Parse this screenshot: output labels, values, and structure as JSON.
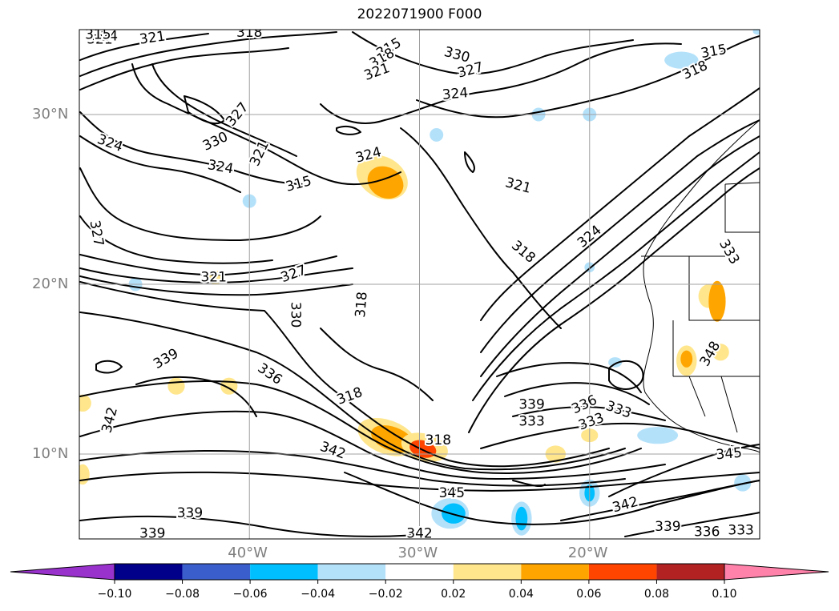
{
  "title": "2022071900 F000",
  "map": {
    "lat_labels": [
      {
        "text": "30°N",
        "lat": 30
      },
      {
        "text": "20°N",
        "lat": 20
      },
      {
        "text": "10°N",
        "lat": 10
      }
    ],
    "lon_labels": [
      {
        "text": "40°W",
        "lon": -40
      },
      {
        "text": "30°W",
        "lon": -30
      },
      {
        "text": "20°W",
        "lon": -20
      }
    ],
    "lon_range": [
      -50,
      -10
    ],
    "lat_range": [
      5,
      35
    ],
    "grid": true,
    "contour_labels": [
      {
        "text": "318",
        "lon": -40.0,
        "lat": 34.8,
        "angle": 0
      },
      {
        "text": "321",
        "lon": -45.7,
        "lat": 34.5,
        "angle": -8
      },
      {
        "text": "321",
        "lon": -48.8,
        "lat": 34.4,
        "angle": 0
      },
      {
        "text": "324",
        "lon": -48.5,
        "lat": 34.6,
        "angle": 0
      },
      {
        "text": "315",
        "lon": -48.9,
        "lat": 34.7,
        "angle": 0
      },
      {
        "text": "315",
        "lon": -31.8,
        "lat": 33.9,
        "angle": -30
      },
      {
        "text": "318",
        "lon": -32.2,
        "lat": 33.3,
        "angle": -30
      },
      {
        "text": "321",
        "lon": -32.5,
        "lat": 32.5,
        "angle": -20
      },
      {
        "text": "330",
        "lon": -27.8,
        "lat": 33.5,
        "angle": 15
      },
      {
        "text": "327",
        "lon": -27.0,
        "lat": 32.6,
        "angle": -15
      },
      {
        "text": "324",
        "lon": -27.9,
        "lat": 31.2,
        "angle": -5
      },
      {
        "text": "315",
        "lon": -12.7,
        "lat": 33.7,
        "angle": -10
      },
      {
        "text": "318",
        "lon": -13.8,
        "lat": 32.6,
        "angle": -25
      },
      {
        "text": "327",
        "lon": -40.7,
        "lat": 30.0,
        "angle": -50
      },
      {
        "text": "330",
        "lon": -42.0,
        "lat": 28.4,
        "angle": -25
      },
      {
        "text": "321",
        "lon": -39.4,
        "lat": 27.7,
        "angle": -65
      },
      {
        "text": "324",
        "lon": -48.2,
        "lat": 28.3,
        "angle": 20
      },
      {
        "text": "324",
        "lon": -41.7,
        "lat": 26.9,
        "angle": 10
      },
      {
        "text": "324",
        "lon": -33.0,
        "lat": 27.6,
        "angle": -15
      },
      {
        "text": "315",
        "lon": -37.1,
        "lat": 25.9,
        "angle": -15
      },
      {
        "text": "321",
        "lon": -24.2,
        "lat": 25.8,
        "angle": 15
      },
      {
        "text": "327",
        "lon": -49.0,
        "lat": 23.0,
        "angle": 80
      },
      {
        "text": "324",
        "lon": -20.0,
        "lat": 22.8,
        "angle": -40
      },
      {
        "text": "318",
        "lon": -23.9,
        "lat": 21.9,
        "angle": 40
      },
      {
        "text": "333",
        "lon": -11.8,
        "lat": 21.9,
        "angle": 60
      },
      {
        "text": "321",
        "lon": -42.1,
        "lat": 20.4,
        "angle": 0
      },
      {
        "text": "327",
        "lon": -37.4,
        "lat": 20.6,
        "angle": -20
      },
      {
        "text": "330",
        "lon": -37.3,
        "lat": 18.2,
        "angle": 90
      },
      {
        "text": "318",
        "lon": -33.4,
        "lat": 18.8,
        "angle": -85
      },
      {
        "text": "339",
        "lon": -44.9,
        "lat": 15.6,
        "angle": -30
      },
      {
        "text": "336",
        "lon": -38.8,
        "lat": 14.7,
        "angle": 35
      },
      {
        "text": "348",
        "lon": -12.9,
        "lat": 15.9,
        "angle": -60
      },
      {
        "text": "318",
        "lon": -34.1,
        "lat": 13.4,
        "angle": -20
      },
      {
        "text": "339",
        "lon": -23.4,
        "lat": 12.9,
        "angle": 0
      },
      {
        "text": "336",
        "lon": -20.3,
        "lat": 12.9,
        "angle": -25
      },
      {
        "text": "333",
        "lon": -18.3,
        "lat": 12.6,
        "angle": 20
      },
      {
        "text": "333",
        "lon": -23.4,
        "lat": 11.9,
        "angle": 0
      },
      {
        "text": "333",
        "lon": -19.9,
        "lat": 11.9,
        "angle": -20
      },
      {
        "text": "342",
        "lon": -48.2,
        "lat": 12.0,
        "angle": -75
      },
      {
        "text": "318",
        "lon": -28.9,
        "lat": 10.8,
        "angle": 0
      },
      {
        "text": "342",
        "lon": -35.1,
        "lat": 10.2,
        "angle": 20
      },
      {
        "text": "345",
        "lon": -11.8,
        "lat": 10.0,
        "angle": -5
      },
      {
        "text": "345",
        "lon": -28.1,
        "lat": 7.7,
        "angle": 0
      },
      {
        "text": "342",
        "lon": -17.9,
        "lat": 7.0,
        "angle": -15
      },
      {
        "text": "339",
        "lon": -43.5,
        "lat": 6.5,
        "angle": 0
      },
      {
        "text": "339",
        "lon": -15.4,
        "lat": 5.7,
        "angle": 0
      },
      {
        "text": "336",
        "lon": -13.1,
        "lat": 5.4,
        "angle": 0
      },
      {
        "text": "333",
        "lon": -11.1,
        "lat": 5.5,
        "angle": 0
      },
      {
        "text": "339",
        "lon": -45.7,
        "lat": 5.3,
        "angle": 0
      },
      {
        "text": "342",
        "lon": -30.0,
        "lat": 5.3,
        "angle": 0
      }
    ],
    "shaded_blobs": [
      {
        "lon": -32.2,
        "lat": 26.3,
        "rx": 1.6,
        "ry": 1.2,
        "color": "#ffe68c",
        "angle": 30
      },
      {
        "lon": -32.0,
        "lat": 26.0,
        "rx": 1.1,
        "ry": 0.9,
        "color": "#ffa500",
        "angle": 30
      },
      {
        "lon": -31.9,
        "lat": 11.0,
        "rx": 1.8,
        "ry": 1.0,
        "color": "#ffe68c",
        "angle": 20
      },
      {
        "lon": -31.6,
        "lat": 10.9,
        "rx": 1.3,
        "ry": 0.7,
        "color": "#ffa500",
        "angle": 20
      },
      {
        "lon": -29.7,
        "lat": 10.4,
        "rx": 1.4,
        "ry": 0.8,
        "color": "#ffe68c",
        "angle": 15
      },
      {
        "lon": -29.8,
        "lat": 10.3,
        "rx": 0.8,
        "ry": 0.5,
        "color": "#ff4500",
        "angle": 15
      },
      {
        "lon": -28.2,
        "lat": 6.5,
        "rx": 1.1,
        "ry": 0.9,
        "color": "#b4e1fa",
        "angle": 0
      },
      {
        "lon": -28.0,
        "lat": 6.5,
        "rx": 0.7,
        "ry": 0.6,
        "color": "#00bfff",
        "angle": 0
      },
      {
        "lon": -24.0,
        "lat": 6.2,
        "rx": 0.6,
        "ry": 1.0,
        "color": "#b4e1fa",
        "angle": 0
      },
      {
        "lon": -24.0,
        "lat": 6.2,
        "rx": 0.35,
        "ry": 0.7,
        "color": "#00bfff",
        "angle": 0
      },
      {
        "lon": -20.0,
        "lat": 7.7,
        "rx": 0.6,
        "ry": 0.8,
        "color": "#b4e1fa",
        "angle": 0
      },
      {
        "lon": -20.0,
        "lat": 7.7,
        "rx": 0.3,
        "ry": 0.5,
        "color": "#00bfff",
        "angle": 0
      },
      {
        "lon": -14.6,
        "lat": 33.2,
        "rx": 1.0,
        "ry": 0.5,
        "color": "#b4e1fa",
        "angle": 0
      },
      {
        "lon": -13.0,
        "lat": 19.3,
        "rx": 0.6,
        "ry": 0.7,
        "color": "#ffe68c",
        "angle": 0
      },
      {
        "lon": -12.5,
        "lat": 19.0,
        "rx": 0.5,
        "ry": 1.2,
        "color": "#ffa500",
        "angle": 0
      },
      {
        "lon": -12.3,
        "lat": 16.0,
        "rx": 0.5,
        "ry": 0.5,
        "color": "#ffe68c",
        "angle": 0
      },
      {
        "lon": -14.3,
        "lat": 15.5,
        "rx": 0.6,
        "ry": 0.9,
        "color": "#ffe68c",
        "angle": 0
      },
      {
        "lon": -14.3,
        "lat": 15.6,
        "rx": 0.35,
        "ry": 0.5,
        "color": "#ffa500",
        "angle": 0
      },
      {
        "lon": -22.0,
        "lat": 10.0,
        "rx": 0.6,
        "ry": 0.5,
        "color": "#ffe68c",
        "angle": 0
      },
      {
        "lon": -20.0,
        "lat": 11.1,
        "rx": 0.5,
        "ry": 0.4,
        "color": "#ffe68c",
        "angle": 0
      },
      {
        "lon": -16.0,
        "lat": 11.1,
        "rx": 1.2,
        "ry": 0.5,
        "color": "#b4e1fa",
        "angle": 0
      },
      {
        "lon": -18.5,
        "lat": 15.4,
        "rx": 0.4,
        "ry": 0.3,
        "color": "#b4e1fa",
        "angle": 0
      },
      {
        "lon": -41.2,
        "lat": 14.0,
        "rx": 0.5,
        "ry": 0.5,
        "color": "#ffe68c",
        "angle": 0
      },
      {
        "lon": -44.3,
        "lat": 14.0,
        "rx": 0.5,
        "ry": 0.5,
        "color": "#ffe68c",
        "angle": 0
      },
      {
        "lon": -49.8,
        "lat": 13.0,
        "rx": 0.5,
        "ry": 0.5,
        "color": "#ffe68c",
        "angle": 0
      },
      {
        "lon": -49.8,
        "lat": 8.8,
        "rx": 0.4,
        "ry": 0.6,
        "color": "#ffe68c",
        "angle": 0
      },
      {
        "lon": -42.0,
        "lat": 20.4,
        "rx": 0.5,
        "ry": 0.4,
        "color": "#ffe68c",
        "angle": 0
      },
      {
        "lon": -40.0,
        "lat": 24.9,
        "rx": 0.4,
        "ry": 0.4,
        "color": "#b4e1fa",
        "angle": 0
      },
      {
        "lon": -29.0,
        "lat": 28.8,
        "rx": 0.4,
        "ry": 0.4,
        "color": "#b4e1fa",
        "angle": 0
      },
      {
        "lon": -23.0,
        "lat": 30.0,
        "rx": 0.4,
        "ry": 0.4,
        "color": "#b4e1fa",
        "angle": 0
      },
      {
        "lon": -20.0,
        "lat": 30.0,
        "rx": 0.4,
        "ry": 0.4,
        "color": "#b4e1fa",
        "angle": 0
      },
      {
        "lon": -20.0,
        "lat": 21.0,
        "rx": 0.3,
        "ry": 0.3,
        "color": "#b4e1fa",
        "angle": 0
      },
      {
        "lon": -46.7,
        "lat": 20.0,
        "rx": 0.4,
        "ry": 0.4,
        "color": "#b4e1fa",
        "angle": 0
      },
      {
        "lon": -11.0,
        "lat": 8.3,
        "rx": 0.5,
        "ry": 0.5,
        "color": "#b4e1fa",
        "angle": 0
      },
      {
        "lon": -10.1,
        "lat": 34.9,
        "rx": 0.3,
        "ry": 0.2,
        "color": "#b4e1fa",
        "angle": 0
      }
    ]
  },
  "colorbar": {
    "colors": [
      "#9932cc",
      "#00008b",
      "#3a5fcd",
      "#00bfff",
      "#b4e1fa",
      "#ffffff",
      "#ffe68c",
      "#ffa500",
      "#ff4500",
      "#b22222",
      "#ff82ab"
    ],
    "ticks": [
      "−0.10",
      "−0.08",
      "−0.06",
      "−0.04",
      "−0.02",
      "0.02",
      "0.04",
      "0.06",
      "0.08",
      "0.10"
    ]
  }
}
